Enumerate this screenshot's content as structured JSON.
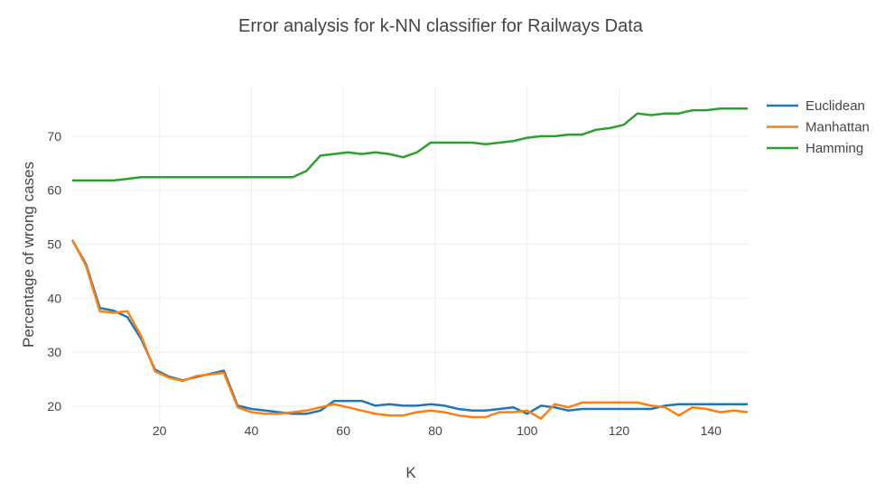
{
  "chart_data": {
    "type": "line",
    "title": "Error analysis for k-NN classifier for Railways Data",
    "xlabel": "K",
    "ylabel": "Percentage of wrong cases",
    "xlim": [
      1,
      148
    ],
    "ylim": [
      17,
      79
    ],
    "x_ticks": [
      20,
      40,
      60,
      80,
      100,
      120,
      140
    ],
    "y_ticks": [
      20,
      30,
      40,
      50,
      60,
      70
    ],
    "grid": true,
    "legend_position": "top-right",
    "x": [
      1,
      4,
      7,
      10,
      13,
      16,
      19,
      22,
      25,
      28,
      31,
      34,
      37,
      40,
      43,
      46,
      49,
      52,
      55,
      58,
      61,
      64,
      67,
      70,
      73,
      76,
      79,
      82,
      85,
      88,
      91,
      94,
      97,
      100,
      103,
      106,
      109,
      112,
      115,
      118,
      121,
      124,
      127,
      130,
      133,
      136,
      139,
      142,
      145,
      148
    ],
    "series": [
      {
        "name": "Euclidean",
        "color": "#1f77b4",
        "values": [
          50.8,
          46.3,
          38.2,
          37.7,
          36.5,
          32.5,
          26.8,
          25.5,
          24.8,
          25.4,
          26.0,
          26.6,
          20.1,
          19.5,
          19.2,
          18.9,
          18.6,
          18.6,
          19.2,
          21.0,
          21.0,
          21.0,
          20.1,
          20.4,
          20.1,
          20.1,
          20.4,
          20.1,
          19.5,
          19.2,
          19.2,
          19.5,
          19.8,
          18.6,
          20.1,
          19.8,
          19.2,
          19.5,
          19.5,
          19.5,
          19.5,
          19.5,
          19.5,
          20.1,
          20.4,
          20.4,
          20.4,
          20.4,
          20.4,
          20.4
        ]
      },
      {
        "name": "Manhattan",
        "color": "#ff7f0e",
        "values": [
          50.8,
          46.0,
          37.6,
          37.3,
          37.6,
          33.0,
          26.5,
          25.3,
          24.7,
          25.6,
          25.9,
          26.2,
          19.8,
          18.9,
          18.6,
          18.6,
          18.9,
          19.2,
          19.8,
          20.4,
          19.8,
          19.2,
          18.6,
          18.3,
          18.3,
          18.9,
          19.2,
          18.9,
          18.3,
          18.0,
          18.0,
          18.9,
          18.9,
          19.2,
          17.7,
          20.4,
          19.8,
          20.7,
          20.7,
          20.7,
          20.7,
          20.7,
          20.1,
          19.8,
          18.3,
          19.8,
          19.5,
          18.9,
          19.2,
          18.9
        ]
      },
      {
        "name": "Hamming",
        "color": "#2ca02c",
        "values": [
          61.8,
          61.8,
          61.8,
          61.8,
          62.1,
          62.4,
          62.4,
          62.4,
          62.4,
          62.4,
          62.4,
          62.4,
          62.4,
          62.4,
          62.4,
          62.4,
          62.4,
          63.6,
          66.4,
          66.7,
          67.0,
          66.7,
          67.0,
          66.7,
          66.1,
          67.0,
          68.8,
          68.8,
          68.8,
          68.8,
          68.5,
          68.8,
          69.1,
          69.7,
          70.0,
          70.0,
          70.3,
          70.3,
          71.2,
          71.5,
          72.1,
          74.2,
          73.9,
          74.2,
          74.2,
          74.8,
          74.8,
          75.1,
          75.1,
          75.1
        ]
      }
    ]
  }
}
